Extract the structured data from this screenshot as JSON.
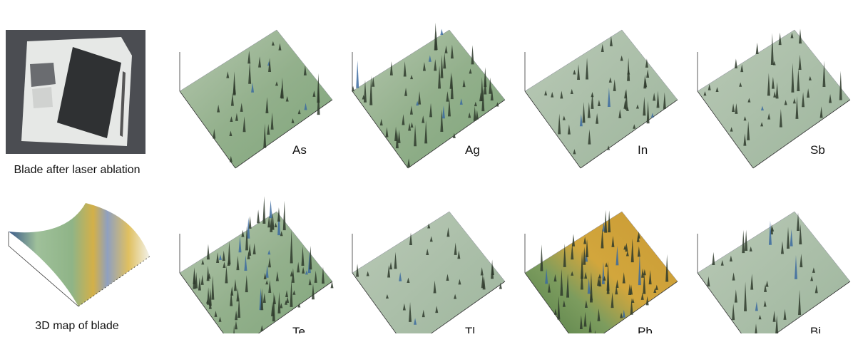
{
  "photo": {
    "caption": "Blade after laser ablation"
  },
  "blade_map": {
    "caption": "3D map of blade"
  },
  "panels": [
    {
      "label": "As"
    },
    {
      "label": "Ag"
    },
    {
      "label": "In"
    },
    {
      "label": "Sb"
    },
    {
      "label": "Te"
    },
    {
      "label": "Tl"
    },
    {
      "label": "Pb"
    },
    {
      "label": "Bi"
    }
  ]
}
